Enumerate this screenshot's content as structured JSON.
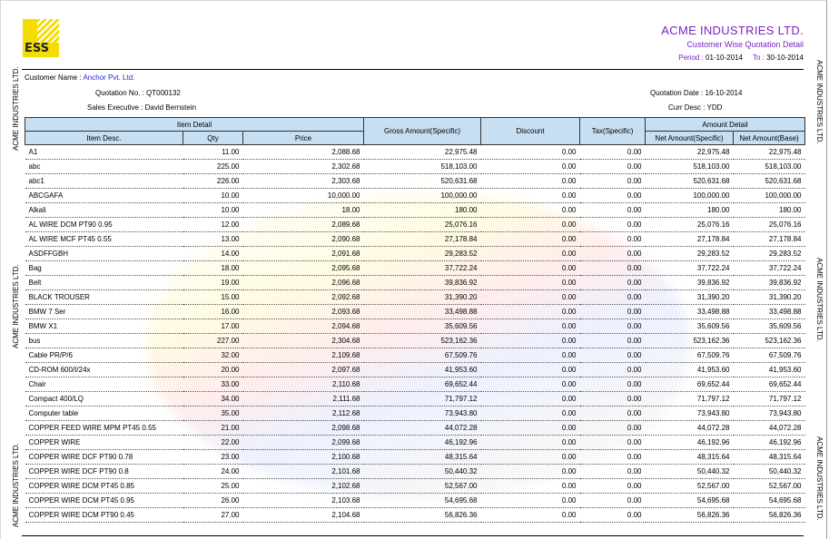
{
  "logo_text": "ESS",
  "company_name": "ACME INDUSTRIES LTD.",
  "report_title": "Customer Wise Quotation Detail",
  "period": {
    "label": "Period :",
    "from": "01-10-2014",
    "to_label": "To :",
    "to": "30-10-2014"
  },
  "side_label": "ACME INDUSTRIES LTD.",
  "customer": {
    "label": "Customer Name :",
    "value": "Anchor Pvt. Ltd."
  },
  "quotation_no": {
    "label": "Quotation No. :",
    "value": "QT000132"
  },
  "sales_executive": {
    "label": "Sales Executive :",
    "value": "David Bernstein"
  },
  "quotation_date": {
    "label": "Quotation Date :",
    "value": "16-10-2014"
  },
  "curr_desc": {
    "label": "Curr Desc :",
    "value": "YDD"
  },
  "headers": {
    "item_detail": "Item Detail",
    "item_desc": "Item Desc.",
    "qty": "Qty",
    "price": "Price",
    "gross": "Gross Amount(Specific)",
    "discount": "Discount",
    "tax": "Tax(Specific)",
    "amount_detail": "Amount Detail",
    "net_specific": "Net Amount(Specific)",
    "net_base": "Net Amount(Base)"
  },
  "rows": [
    [
      "A1",
      "11.00",
      "2,088.68",
      "22,975.48",
      "0.00",
      "0.00",
      "22,975.48",
      "22,975.48"
    ],
    [
      "abc",
      "225.00",
      "2,302.68",
      "518,103.00",
      "0.00",
      "0.00",
      "518,103.00",
      "518,103.00"
    ],
    [
      "abc1",
      "226.00",
      "2,303.68",
      "520,631.68",
      "0.00",
      "0.00",
      "520,631.68",
      "520,631.68"
    ],
    [
      "ABCGAFA",
      "10.00",
      "10,000.00",
      "100,000.00",
      "0.00",
      "0.00",
      "100,000.00",
      "100,000.00"
    ],
    [
      "Alkali",
      "10.00",
      "18.00",
      "180.00",
      "0.00",
      "0.00",
      "180.00",
      "180.00"
    ],
    [
      "AL WIRE DCM PT90 0.95",
      "12.00",
      "2,089.68",
      "25,076.16",
      "0.00",
      "0.00",
      "25,076.16",
      "25,076.16"
    ],
    [
      "AL WIRE MCF PT45 0.55",
      "13.00",
      "2,090.68",
      "27,178.84",
      "0.00",
      "0.00",
      "27,178.84",
      "27,178.84"
    ],
    [
      "ASDFFGBH",
      "14.00",
      "2,091.68",
      "29,283.52",
      "0.00",
      "0.00",
      "29,283.52",
      "29,283.52"
    ],
    [
      "Bag",
      "18.00",
      "2,095.68",
      "37,722.24",
      "0.00",
      "0.00",
      "37,722.24",
      "37,722.24"
    ],
    [
      "Belt",
      "19.00",
      "2,096.68",
      "39,836.92",
      "0.00",
      "0.00",
      "39,836.92",
      "39,836.92"
    ],
    [
      "BLACK TROUSER",
      "15.00",
      "2,092.68",
      "31,390.20",
      "0.00",
      "0.00",
      "31,390.20",
      "31,390.20"
    ],
    [
      "BMW 7 Ser",
      "16.00",
      "2,093.68",
      "33,498.88",
      "0.00",
      "0.00",
      "33,498.88",
      "33,498.88"
    ],
    [
      "BMW X1",
      "17.00",
      "2,094.68",
      "35,609.56",
      "0.00",
      "0.00",
      "35,609.56",
      "35,609.56"
    ],
    [
      "bus",
      "227.00",
      "2,304.68",
      "523,162.36",
      "0.00",
      "0.00",
      "523,162.36",
      "523,162.36"
    ],
    [
      "Cable PR/P/6",
      "32.00",
      "2,109.68",
      "67,509.76",
      "0.00",
      "0.00",
      "67,509.76",
      "67,509.76"
    ],
    [
      "CD-ROM 600/I/24x",
      "20.00",
      "2,097.68",
      "41,953.60",
      "0.00",
      "0.00",
      "41,953.60",
      "41,953.60"
    ],
    [
      "Chair",
      "33.00",
      "2,110.68",
      "69,652.44",
      "0.00",
      "0.00",
      "69,652.44",
      "69,652.44"
    ],
    [
      "Compact 400/LQ",
      "34.00",
      "2,111.68",
      "71,797.12",
      "0.00",
      "0.00",
      "71,797.12",
      "71,797.12"
    ],
    [
      "Computer table",
      "35.00",
      "2,112.68",
      "73,943.80",
      "0.00",
      "0.00",
      "73,943.80",
      "73,943.80"
    ],
    [
      "COPPER FEED WIRE MPM PT45 0.55",
      "21.00",
      "2,098.68",
      "44,072.28",
      "0.00",
      "0.00",
      "44,072.28",
      "44,072.28"
    ],
    [
      "COPPER WIRE",
      "22.00",
      "2,099.68",
      "46,192.96",
      "0.00",
      "0.00",
      "46,192.96",
      "46,192.96"
    ],
    [
      "COPPER WIRE DCF PT90 0.78",
      "23.00",
      "2,100.68",
      "48,315.64",
      "0.00",
      "0.00",
      "48,315.64",
      "48,315.64"
    ],
    [
      "COPPER WIRE DCF PT90 0.8",
      "24.00",
      "2,101.68",
      "50,440.32",
      "0.00",
      "0.00",
      "50,440.32",
      "50,440.32"
    ],
    [
      "COPPER WIRE DCM PT45 0.85",
      "25.00",
      "2,102.68",
      "52,567.00",
      "0.00",
      "0.00",
      "52,567.00",
      "52,567.00"
    ],
    [
      "COPPER WIRE DCM PT45 0.95",
      "26.00",
      "2,103.68",
      "54,695.68",
      "0.00",
      "0.00",
      "54,695.68",
      "54,695.68"
    ],
    [
      "COPPER WIRE DCM PT90 0.45",
      "27.00",
      "2,104.68",
      "56,826.36",
      "0.00",
      "0.00",
      "56,826.36",
      "56,826.36"
    ]
  ]
}
